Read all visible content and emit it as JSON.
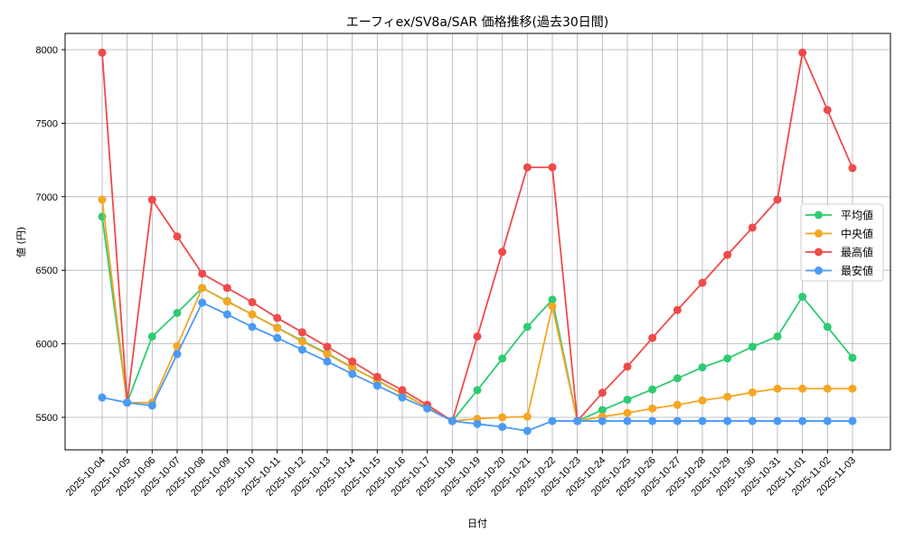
{
  "chart_data": {
    "type": "line",
    "title": "エーフィex/SV8a/SAR 価格推移(過去30日間)",
    "xlabel": "日付",
    "ylabel": "値 (円)",
    "ylim": [
      5280,
      8110
    ],
    "yticks": [
      5500,
      6000,
      6500,
      7000,
      7500,
      8000
    ],
    "grid": true,
    "legend_position": "center right",
    "x": [
      "2025-10-04",
      "2025-10-05",
      "2025-10-06",
      "2025-10-07",
      "2025-10-08",
      "2025-10-09",
      "2025-10-10",
      "2025-10-11",
      "2025-10-12",
      "2025-10-13",
      "2025-10-14",
      "2025-10-15",
      "2025-10-16",
      "2025-10-17",
      "2025-10-18",
      "2025-10-19",
      "2025-10-20",
      "2025-10-21",
      "2025-10-22",
      "2025-10-23",
      "2025-10-24",
      "2025-10-25",
      "2025-10-26",
      "2025-10-27",
      "2025-10-28",
      "2025-10-29",
      "2025-10-30",
      "2025-10-31",
      "2025-11-01",
      "2025-11-02",
      "2025-11-03"
    ],
    "series": [
      {
        "name": "平均値",
        "color": "#2ecc71",
        "values": [
          6865,
          5600,
          6050,
          6210,
          6380,
          6290,
          6200,
          6110,
          6020,
          5935,
          5840,
          5750,
          5660,
          5570,
          5475,
          5685,
          5900,
          6115,
          6300,
          5475,
          5550,
          5620,
          5690,
          5765,
          5840,
          5900,
          5980,
          6050,
          6320,
          6115,
          5905
        ]
      },
      {
        "name": "中央値",
        "color": "#f5a623",
        "values": [
          6980,
          5600,
          5600,
          5985,
          6380,
          6287,
          6200,
          6108,
          6016,
          5930,
          5837,
          5750,
          5660,
          5570,
          5475,
          5490,
          5500,
          5505,
          6255,
          5475,
          5505,
          5530,
          5560,
          5585,
          5615,
          5640,
          5670,
          5695,
          5695,
          5695,
          5695
        ]
      },
      {
        "name": "最高値",
        "color": "#f04a4a",
        "values": [
          7980,
          5600,
          6980,
          6730,
          6477,
          6380,
          6283,
          6176,
          6078,
          5980,
          5880,
          5775,
          5685,
          5585,
          5475,
          6050,
          6625,
          7200,
          7200,
          5475,
          5667,
          5845,
          6040,
          6230,
          6415,
          6605,
          6790,
          6980,
          7980,
          7590,
          7195
        ]
      },
      {
        "name": "最安値",
        "color": "#4a9af5",
        "values": [
          5635,
          5600,
          5580,
          5930,
          6280,
          6200,
          6115,
          6040,
          5960,
          5880,
          5795,
          5715,
          5635,
          5560,
          5475,
          5455,
          5435,
          5408,
          5475,
          5475,
          5475,
          5475,
          5475,
          5475,
          5475,
          5475,
          5475,
          5475,
          5475,
          5475,
          5475
        ]
      }
    ]
  }
}
